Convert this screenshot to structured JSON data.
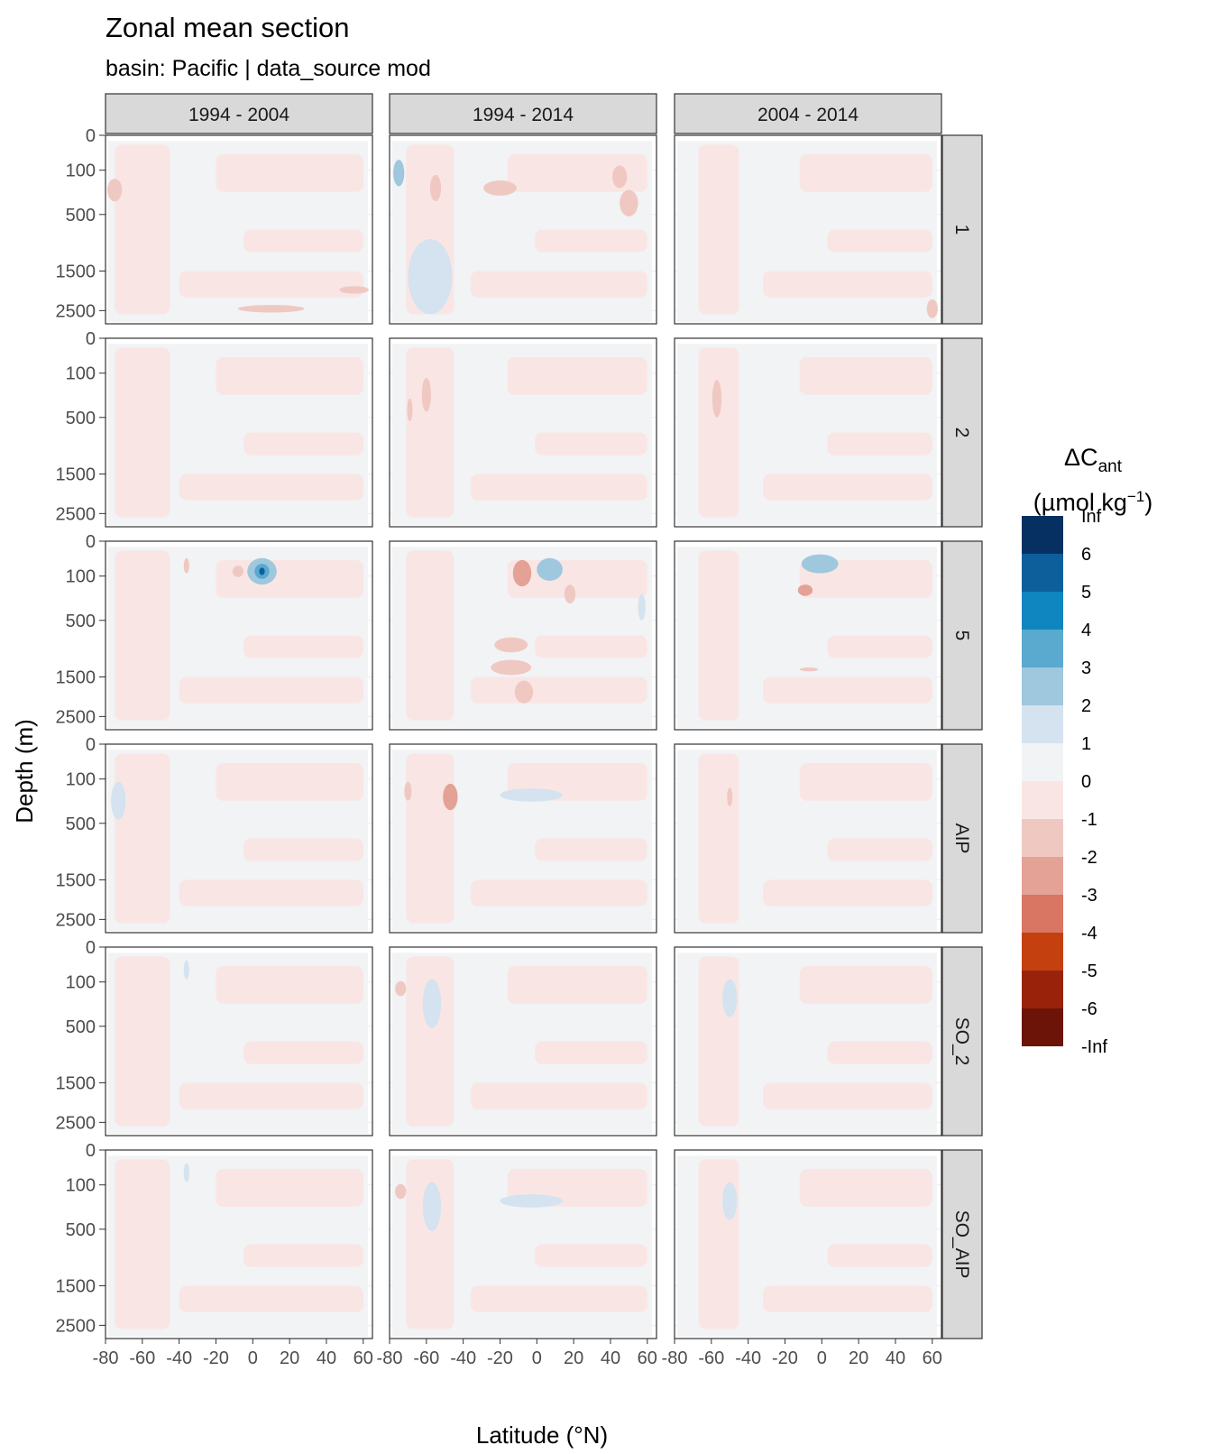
{
  "chart_data": {
    "type": "heatmap",
    "title": "Zonal mean section",
    "subtitle": "basin: Pacific | data_source mod",
    "xlabel": "Latitude (°N)",
    "ylabel": "Depth (m)",
    "xlim": [
      -80,
      65
    ],
    "x_ticks": [
      "-80",
      "-60",
      "-40",
      "-20",
      "0",
      "20",
      "40",
      "60"
    ],
    "y_ticks": [
      "0",
      "100",
      "500",
      "1500",
      "2500"
    ],
    "y_tick_values": [
      0,
      100,
      500,
      1500,
      2500
    ],
    "y_tick_positions_relative": [
      0,
      0.185,
      0.42,
      0.72,
      0.93
    ],
    "column_facets": [
      "1994 - 2004",
      "1994 - 2014",
      "2004 - 2014"
    ],
    "row_facets": [
      "1",
      "2",
      "5",
      "AIP",
      "SO_2",
      "SO_AIP"
    ],
    "legend": {
      "title_main": "ΔC",
      "title_sub": "ant",
      "unit_main": "(µmol kg",
      "unit_sup": "−1",
      "unit_close": ")",
      "labels": [
        "Inf",
        "6",
        "5",
        "4",
        "3",
        "2",
        "1",
        "0",
        "-1",
        "-2",
        "-3",
        "-4",
        "-5",
        "-6",
        "-Inf"
      ],
      "colors": [
        "#053061",
        "#0c5f9b",
        "#0f86bf",
        "#5aa9ce",
        "#9fc7de",
        "#d4e3ef",
        "#f1f3f5",
        "#f9e6e4",
        "#f0c8c2",
        "#e4a196",
        "#d97563",
        "#c4410f",
        "#99230a",
        "#6b1407"
      ]
    },
    "colors": {
      "background_neutral": "#f1f3f5",
      "light_red": "#f9e6e4",
      "red": "#f0c8c2",
      "mid_red": "#e4a196",
      "light_blue": "#d4e3ef",
      "blue": "#9fc7de",
      "mid_blue": "#5aa9ce",
      "dark_blue": "#0c5f9b",
      "strip_fill": "#d9d9d9"
    },
    "features": [
      {
        "row": 0,
        "col": 0,
        "type": "ellipse",
        "lat": -75,
        "depth_rel": 0.29,
        "rlat": 4,
        "rdep": 0.06,
        "level": "red"
      },
      {
        "row": 0,
        "col": 0,
        "type": "ellipse",
        "lat": 10,
        "depth_rel": 0.92,
        "rlat": 18,
        "rdep": 0.02,
        "level": "red"
      },
      {
        "row": 0,
        "col": 0,
        "type": "ellipse",
        "lat": 55,
        "depth_rel": 0.82,
        "rlat": 8,
        "rdep": 0.02,
        "level": "red"
      },
      {
        "row": 0,
        "col": 1,
        "type": "ellipse",
        "lat": -58,
        "depth_rel": 0.75,
        "rlat": 12,
        "rdep": 0.2,
        "level": "light_blue"
      },
      {
        "row": 0,
        "col": 1,
        "type": "ellipse",
        "lat": -75,
        "depth_rel": 0.2,
        "rlat": 3,
        "rdep": 0.07,
        "level": "blue"
      },
      {
        "row": 0,
        "col": 1,
        "type": "ellipse",
        "lat": -55,
        "depth_rel": 0.28,
        "rlat": 3,
        "rdep": 0.07,
        "level": "red"
      },
      {
        "row": 0,
        "col": 1,
        "type": "ellipse",
        "lat": -20,
        "depth_rel": 0.28,
        "rlat": 9,
        "rdep": 0.04,
        "level": "red"
      },
      {
        "row": 0,
        "col": 1,
        "type": "ellipse",
        "lat": 45,
        "depth_rel": 0.22,
        "rlat": 4,
        "rdep": 0.06,
        "level": "red"
      },
      {
        "row": 0,
        "col": 1,
        "type": "ellipse",
        "lat": 50,
        "depth_rel": 0.36,
        "rlat": 5,
        "rdep": 0.07,
        "level": "red"
      },
      {
        "row": 0,
        "col": 2,
        "type": "ellipse",
        "lat": 60,
        "depth_rel": 0.92,
        "rlat": 3,
        "rdep": 0.05,
        "level": "red"
      },
      {
        "row": 1,
        "col": 1,
        "type": "ellipse",
        "lat": -60,
        "depth_rel": 0.3,
        "rlat": 2.5,
        "rdep": 0.09,
        "level": "red"
      },
      {
        "row": 1,
        "col": 1,
        "type": "ellipse",
        "lat": -69,
        "depth_rel": 0.38,
        "rlat": 1.5,
        "rdep": 0.06,
        "level": "red"
      },
      {
        "row": 1,
        "col": 2,
        "type": "ellipse",
        "lat": -57,
        "depth_rel": 0.32,
        "rlat": 2.5,
        "rdep": 0.1,
        "level": "red"
      },
      {
        "row": 2,
        "col": 0,
        "type": "ellipse",
        "lat": 5,
        "depth_rel": 0.16,
        "rlat": 8,
        "rdep": 0.07,
        "level": "blue"
      },
      {
        "row": 2,
        "col": 0,
        "type": "ellipse",
        "lat": 5,
        "depth_rel": 0.16,
        "rlat": 4,
        "rdep": 0.04,
        "level": "mid_blue"
      },
      {
        "row": 2,
        "col": 0,
        "type": "ellipse",
        "lat": 5,
        "depth_rel": 0.16,
        "rlat": 1.5,
        "rdep": 0.02,
        "level": "dark_blue"
      },
      {
        "row": 2,
        "col": 0,
        "type": "ellipse",
        "lat": -8,
        "depth_rel": 0.16,
        "rlat": 3,
        "rdep": 0.03,
        "level": "red"
      },
      {
        "row": 2,
        "col": 0,
        "type": "ellipse",
        "lat": -36,
        "depth_rel": 0.13,
        "rlat": 1.5,
        "rdep": 0.04,
        "level": "red"
      },
      {
        "row": 2,
        "col": 1,
        "type": "ellipse",
        "lat": -8,
        "depth_rel": 0.17,
        "rlat": 5,
        "rdep": 0.07,
        "level": "mid_red"
      },
      {
        "row": 2,
        "col": 1,
        "type": "ellipse",
        "lat": 7,
        "depth_rel": 0.15,
        "rlat": 7,
        "rdep": 0.06,
        "level": "blue"
      },
      {
        "row": 2,
        "col": 1,
        "type": "ellipse",
        "lat": -14,
        "depth_rel": 0.55,
        "rlat": 9,
        "rdep": 0.04,
        "level": "red"
      },
      {
        "row": 2,
        "col": 1,
        "type": "ellipse",
        "lat": -14,
        "depth_rel": 0.67,
        "rlat": 11,
        "rdep": 0.04,
        "level": "red"
      },
      {
        "row": 2,
        "col": 1,
        "type": "ellipse",
        "lat": -7,
        "depth_rel": 0.8,
        "rlat": 5,
        "rdep": 0.06,
        "level": "red"
      },
      {
        "row": 2,
        "col": 1,
        "type": "ellipse",
        "lat": 18,
        "depth_rel": 0.28,
        "rlat": 3,
        "rdep": 0.05,
        "level": "red"
      },
      {
        "row": 2,
        "col": 1,
        "type": "ellipse",
        "lat": 57,
        "depth_rel": 0.35,
        "rlat": 2,
        "rdep": 0.07,
        "level": "light_blue"
      },
      {
        "row": 2,
        "col": 2,
        "type": "ellipse",
        "lat": -1,
        "depth_rel": 0.12,
        "rlat": 10,
        "rdep": 0.05,
        "level": "blue"
      },
      {
        "row": 2,
        "col": 2,
        "type": "ellipse",
        "lat": -9,
        "depth_rel": 0.26,
        "rlat": 4,
        "rdep": 0.03,
        "level": "mid_red"
      },
      {
        "row": 2,
        "col": 2,
        "type": "ellipse",
        "lat": -7,
        "depth_rel": 0.68,
        "rlat": 5,
        "rdep": 0.01,
        "level": "red"
      },
      {
        "row": 3,
        "col": 0,
        "type": "ellipse",
        "lat": -73,
        "depth_rel": 0.3,
        "rlat": 4,
        "rdep": 0.1,
        "level": "light_blue"
      },
      {
        "row": 3,
        "col": 1,
        "type": "ellipse",
        "lat": -47,
        "depth_rel": 0.28,
        "rlat": 4,
        "rdep": 0.07,
        "level": "mid_red"
      },
      {
        "row": 3,
        "col": 1,
        "type": "ellipse",
        "lat": -3,
        "depth_rel": 0.27,
        "rlat": 17,
        "rdep": 0.035,
        "level": "light_blue"
      },
      {
        "row": 3,
        "col": 1,
        "type": "ellipse",
        "lat": -70,
        "depth_rel": 0.25,
        "rlat": 2,
        "rdep": 0.05,
        "level": "red"
      },
      {
        "row": 3,
        "col": 2,
        "type": "ellipse",
        "lat": -50,
        "depth_rel": 0.28,
        "rlat": 1.5,
        "rdep": 0.05,
        "level": "red"
      },
      {
        "row": 4,
        "col": 0,
        "type": "ellipse",
        "lat": -36,
        "depth_rel": 0.12,
        "rlat": 1.5,
        "rdep": 0.05,
        "level": "light_blue"
      },
      {
        "row": 4,
        "col": 1,
        "type": "ellipse",
        "lat": -57,
        "depth_rel": 0.3,
        "rlat": 5,
        "rdep": 0.13,
        "level": "light_blue"
      },
      {
        "row": 4,
        "col": 1,
        "type": "ellipse",
        "lat": -74,
        "depth_rel": 0.22,
        "rlat": 3,
        "rdep": 0.04,
        "level": "red"
      },
      {
        "row": 4,
        "col": 2,
        "type": "ellipse",
        "lat": -50,
        "depth_rel": 0.27,
        "rlat": 4,
        "rdep": 0.1,
        "level": "light_blue"
      },
      {
        "row": 5,
        "col": 0,
        "type": "ellipse",
        "lat": -36,
        "depth_rel": 0.12,
        "rlat": 1.5,
        "rdep": 0.05,
        "level": "light_blue"
      },
      {
        "row": 5,
        "col": 1,
        "type": "ellipse",
        "lat": -57,
        "depth_rel": 0.3,
        "rlat": 5,
        "rdep": 0.13,
        "level": "light_blue"
      },
      {
        "row": 5,
        "col": 1,
        "type": "ellipse",
        "lat": -74,
        "depth_rel": 0.22,
        "rlat": 3,
        "rdep": 0.04,
        "level": "red"
      },
      {
        "row": 5,
        "col": 1,
        "type": "ellipse",
        "lat": -3,
        "depth_rel": 0.27,
        "rlat": 17,
        "rdep": 0.035,
        "level": "light_blue"
      },
      {
        "row": 5,
        "col": 2,
        "type": "ellipse",
        "lat": -50,
        "depth_rel": 0.27,
        "rlat": 4,
        "rdep": 0.1,
        "level": "light_blue"
      }
    ]
  }
}
